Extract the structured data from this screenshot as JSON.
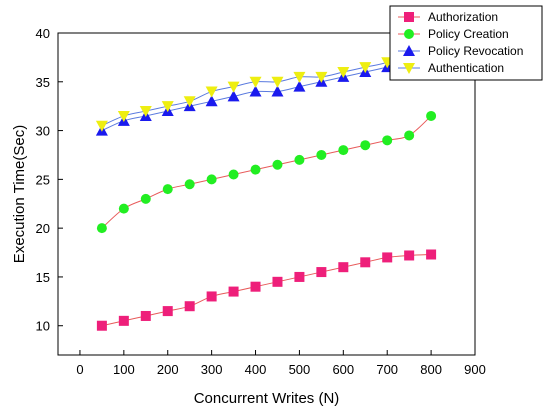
{
  "chart_data": {
    "type": "line",
    "xlabel": "Concurrent Writes (N)",
    "ylabel": "Execution Time(Sec)",
    "xlim": [
      -50,
      900
    ],
    "ylim": [
      7,
      40
    ],
    "xticks": [
      0,
      100,
      200,
      300,
      400,
      500,
      600,
      700,
      800,
      900
    ],
    "yticks": [
      10,
      15,
      20,
      25,
      30,
      35,
      40
    ],
    "grid": false,
    "legend_position": "top-right",
    "x": [
      50,
      100,
      150,
      200,
      250,
      300,
      350,
      400,
      450,
      500,
      550,
      600,
      650,
      700,
      750,
      800
    ],
    "series": [
      {
        "name": "Authorization",
        "marker": "square",
        "color": "#ee1f7a",
        "line_color": "#e85a5a",
        "values": [
          10,
          10.5,
          11,
          11.5,
          12,
          13,
          13.5,
          14,
          14.5,
          15,
          15.5,
          16,
          16.5,
          17,
          17.2,
          17.3
        ]
      },
      {
        "name": "Policy Creation",
        "marker": "circle",
        "color": "#22ee22",
        "line_color": "#e85a5a",
        "values": [
          20,
          22,
          23,
          24,
          24.5,
          25,
          25.5,
          26,
          26.5,
          27,
          27.5,
          28,
          28.5,
          29,
          29.5,
          31.5
        ]
      },
      {
        "name": "Policy Revocation",
        "marker": "triangle-up",
        "color": "#1a1aee",
        "line_color": "#5a7adf",
        "values": [
          30,
          31,
          31.5,
          32,
          32.5,
          33,
          33.5,
          34,
          34,
          34.5,
          35,
          35.5,
          36,
          36.5,
          37,
          38.5
        ]
      },
      {
        "name": "Authentication",
        "marker": "triangle-down",
        "color": "#eeee11",
        "line_color": "#5a7adf",
        "values": [
          30.5,
          31.5,
          32,
          32.5,
          33,
          34,
          34.5,
          35,
          35,
          35.5,
          35.5,
          36,
          36.5,
          37,
          38,
          38.5
        ]
      }
    ]
  }
}
